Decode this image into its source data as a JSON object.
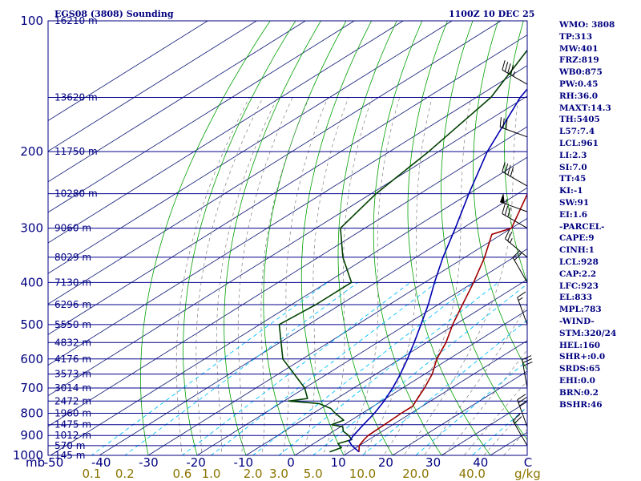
{
  "header": {
    "station_title": "EGS08 (3808) Sounding",
    "valid_time": "1100Z 10 DEC 25"
  },
  "colors": {
    "frame": "#000080",
    "isobar": "#00008b",
    "isotherm": "#1a237e",
    "dry_adiabat": "#00a000",
    "moist_adiabat": "#7f7f7f",
    "mixing_ratio": "#00bfff",
    "temperature": "#a00000",
    "dewpoint": "#004000",
    "parcel": "#0000b0",
    "barb": "#000000",
    "mixing_label": "#8b7500"
  },
  "chart_data": {
    "type": "line",
    "title": "EGS08 (3808) Sounding",
    "subtitle": "1100Z 10 DEC 25",
    "diagram": "skew-T log-P",
    "ylabel": "mb",
    "ylim": [
      1000,
      100
    ],
    "yscale": "log",
    "xlim": [
      -50,
      50
    ],
    "x_unit": "C",
    "secondary_label": "g/kg",
    "pressure_levels": [
      {
        "p": 100,
        "label": "100",
        "height": "16210 m"
      },
      {
        "p": 150,
        "label": "",
        "height": "13620 m"
      },
      {
        "p": 200,
        "label": "200",
        "height": "11750 m"
      },
      {
        "p": 250,
        "label": "",
        "height": "10280 m"
      },
      {
        "p": 300,
        "label": "300",
        "height": "9060 m"
      },
      {
        "p": 350,
        "label": "",
        "height": "8029 m"
      },
      {
        "p": 400,
        "label": "400",
        "height": "7130 m"
      },
      {
        "p": 450,
        "label": "",
        "height": "6296 m"
      },
      {
        "p": 500,
        "label": "500",
        "height": "5550 m"
      },
      {
        "p": 550,
        "label": "",
        "height": "4832 m"
      },
      {
        "p": 600,
        "label": "600",
        "height": "4176 m"
      },
      {
        "p": 650,
        "label": "",
        "height": "3573 m"
      },
      {
        "p": 700,
        "label": "700",
        "height": "3014 m"
      },
      {
        "p": 750,
        "label": "",
        "height": "2472 m"
      },
      {
        "p": 800,
        "label": "800",
        "height": "1960 m"
      },
      {
        "p": 850,
        "label": "",
        "height": "1475 m"
      },
      {
        "p": 900,
        "label": "900",
        "height": "1012 m"
      },
      {
        "p": 950,
        "label": "",
        "height": "570 m"
      },
      {
        "p": 1000,
        "label": "1000",
        "height": "145 m"
      }
    ],
    "temperature_ticks": [
      "-50",
      "-40",
      "-30",
      "-20",
      "-10",
      "0",
      "10",
      "20",
      "30",
      "40",
      "C"
    ],
    "mixing_ratio_ticks": [
      {
        "w": 0.1,
        "label": "0.1"
      },
      {
        "w": 0.2,
        "label": "0.2"
      },
      {
        "w": 0.6,
        "label": "0.6"
      },
      {
        "w": 1.0,
        "label": "1.0"
      },
      {
        "w": 2.0,
        "label": "2.0"
      },
      {
        "w": 3.0,
        "label": "3.0"
      },
      {
        "w": 5.0,
        "label": "5.0"
      },
      {
        "w": 10.0,
        "label": "10.0"
      },
      {
        "w": 20.0,
        "label": "20.0"
      },
      {
        "w": 40.0,
        "label": "40.0"
      }
    ],
    "series": [
      {
        "points": [
          {
            "p": 982,
            "t": 12.0
          },
          {
            "p": 950,
            "t": 10.0
          },
          {
            "p": 920,
            "t": 9.0
          },
          {
            "p": 900,
            "t": 8.5
          },
          {
            "p": 850,
            "t": 8.3
          },
          {
            "p": 800,
            "t": 8.0
          },
          {
            "p": 770,
            "t": 8.0
          },
          {
            "p": 750,
            "t": 7.0
          },
          {
            "p": 700,
            "t": 4.5
          },
          {
            "p": 650,
            "t": 1.5
          },
          {
            "p": 600,
            "t": -2.5
          },
          {
            "p": 550,
            "t": -6.0
          },
          {
            "p": 500,
            "t": -10.5
          },
          {
            "p": 450,
            "t": -15.0
          },
          {
            "p": 400,
            "t": -20.0
          },
          {
            "p": 350,
            "t": -26.0
          },
          {
            "p": 310,
            "t": -32.0
          },
          {
            "p": 300,
            "t": -30.0
          },
          {
            "p": 250,
            "t": -38.0
          },
          {
            "p": 200,
            "t": -45.0
          },
          {
            "p": 150,
            "t": -55.0
          },
          {
            "p": 120,
            "t": -62.0
          },
          {
            "p": 100,
            "t": -68.0
          }
        ]
      },
      {
        "points": [
          {
            "p": 982,
            "t": 6.0
          },
          {
            "p": 960,
            "t": 7.0
          },
          {
            "p": 940,
            "t": 5.0
          },
          {
            "p": 920,
            "t": 6.5
          },
          {
            "p": 900,
            "t": 4.5
          },
          {
            "p": 880,
            "t": 2.0
          },
          {
            "p": 860,
            "t": 0.5
          },
          {
            "p": 850,
            "t": -2.5
          },
          {
            "p": 830,
            "t": -1.5
          },
          {
            "p": 800,
            "t": -5.5
          },
          {
            "p": 780,
            "t": -8.0
          },
          {
            "p": 760,
            "t": -12.0
          },
          {
            "p": 750,
            "t": -19.0
          },
          {
            "p": 740,
            "t": -16.0
          },
          {
            "p": 700,
            "t": -20.0
          },
          {
            "p": 600,
            "t": -34.0
          },
          {
            "p": 500,
            "t": -46.0
          },
          {
            "p": 450,
            "t": -45.0
          },
          {
            "p": 400,
            "t": -45.0
          },
          {
            "p": 350,
            "t": -55.0
          },
          {
            "p": 300,
            "t": -65.0
          },
          {
            "p": 250,
            "t": -69.0
          },
          {
            "p": 200,
            "t": -72.0
          },
          {
            "p": 150,
            "t": -77.0
          },
          {
            "p": 100,
            "t": -90.0
          }
        ]
      },
      {
        "points": [
          {
            "p": 982,
            "t": 12.0
          },
          {
            "p": 950,
            "t": 8.5
          },
          {
            "p": 928,
            "t": 6.5
          },
          {
            "p": 900,
            "t": 5.5
          },
          {
            "p": 850,
            "t": 4.0
          },
          {
            "p": 800,
            "t": 2.5
          },
          {
            "p": 750,
            "t": 0.5
          },
          {
            "p": 700,
            "t": -2.0
          },
          {
            "p": 650,
            "t": -5.0
          },
          {
            "p": 600,
            "t": -8.5
          },
          {
            "p": 550,
            "t": -12.5
          },
          {
            "p": 500,
            "t": -17.0
          },
          {
            "p": 450,
            "t": -22.0
          },
          {
            "p": 400,
            "t": -28.0
          },
          {
            "p": 350,
            "t": -34.5
          },
          {
            "p": 300,
            "t": -41.5
          },
          {
            "p": 250,
            "t": -50.0
          },
          {
            "p": 200,
            "t": -60.0
          },
          {
            "p": 150,
            "t": -71.0
          },
          {
            "p": 110,
            "t": -80.0
          }
        ]
      }
    ],
    "wind_barbs": [
      {
        "p": 140,
        "dir": 300,
        "kt": 45
      },
      {
        "p": 185,
        "dir": 290,
        "kt": 30
      },
      {
        "p": 240,
        "dir": 300,
        "kt": 40
      },
      {
        "p": 275,
        "dir": 290,
        "kt": 55
      },
      {
        "p": 300,
        "dir": 300,
        "kt": 30
      },
      {
        "p": 350,
        "dir": 310,
        "kt": 25
      },
      {
        "p": 400,
        "dir": 330,
        "kt": 20
      },
      {
        "p": 500,
        "dir": 340,
        "kt": 15
      },
      {
        "p": 700,
        "dir": 350,
        "kt": 30
      },
      {
        "p": 860,
        "dir": 340,
        "kt": 30
      },
      {
        "p": 950,
        "dir": 330,
        "kt": 20
      }
    ]
  },
  "indices": [
    "WMO: 3808",
    "TP:313",
    "MW:401",
    "FRZ:819",
    "WB0:875",
    "PW:0.45",
    "RH:36.0",
    "MAXT:14.3",
    "TH:5405",
    "L57:7.4",
    "LCL:961",
    "LI:2.3",
    "SI:7.0",
    "TT:45",
    "KI:-1",
    "SW:91",
    "EI:1.6",
    "-PARCEL-",
    "CAPE:9",
    "CINH:1",
    "LCL:928",
    "CAP:2.2",
    "LFC:923",
    "EL:833",
    "MPL:783",
    "-WIND-",
    "STM:320/24",
    "HEL:160",
    "SHR+:0.0",
    "SRDS:65",
    "EHI:0.0",
    "BRN:0.2",
    "BSHR:46"
  ]
}
